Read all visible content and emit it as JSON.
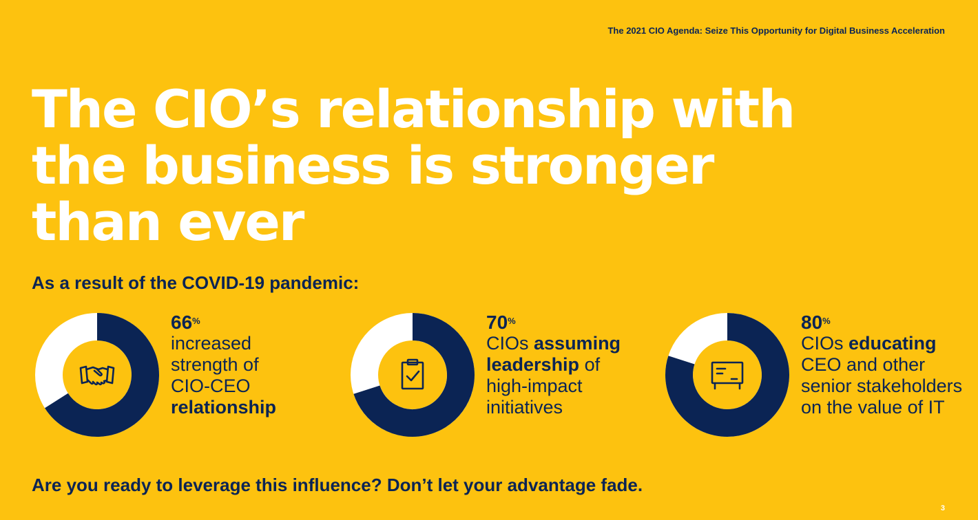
{
  "header": {
    "doc_title": "The 2021 CIO Agenda: Seize This Opportunity for Digital Business Acceleration"
  },
  "hero": {
    "line1": "The CIO’s relationship with",
    "line2": "the business is stronger",
    "line3": "than ever"
  },
  "intro": "As a result of the COVID-19 pandemic:",
  "colors": {
    "background": "#FDC20F",
    "navy": "#0B2454",
    "white": "#FFFFFF"
  },
  "stats": [
    {
      "value": "66",
      "unit": "%",
      "fraction": 0.66,
      "icon": "handshake-icon",
      "lines": [
        {
          "pre": "increased",
          "bold": "",
          "post": ""
        },
        {
          "pre": "strength of",
          "bold": "",
          "post": ""
        },
        {
          "pre": "CIO-CEO",
          "bold": "",
          "post": ""
        },
        {
          "pre": "",
          "bold": "relationship",
          "post": ""
        }
      ]
    },
    {
      "value": "70",
      "unit": "%",
      "fraction": 0.7,
      "icon": "clipboard-check-icon",
      "lines": [
        {
          "pre": "CIOs ",
          "bold": "assuming",
          "post": ""
        },
        {
          "pre": "",
          "bold": "leadership",
          "post": " of"
        },
        {
          "pre": "high-impact",
          "bold": "",
          "post": ""
        },
        {
          "pre": "initiatives",
          "bold": "",
          "post": ""
        }
      ]
    },
    {
      "value": "80",
      "unit": "%",
      "fraction": 0.8,
      "icon": "presentation-board-icon",
      "lines": [
        {
          "pre": "CIOs ",
          "bold": "educating",
          "post": ""
        },
        {
          "pre": "CEO and other",
          "bold": "",
          "post": ""
        },
        {
          "pre": "senior stakeholders",
          "bold": "",
          "post": ""
        },
        {
          "pre": "on the value of IT",
          "bold": "",
          "post": ""
        }
      ]
    }
  ],
  "cta": "Are you ready to leverage this influence? Don’t let your advantage fade.",
  "page_number": "3"
}
